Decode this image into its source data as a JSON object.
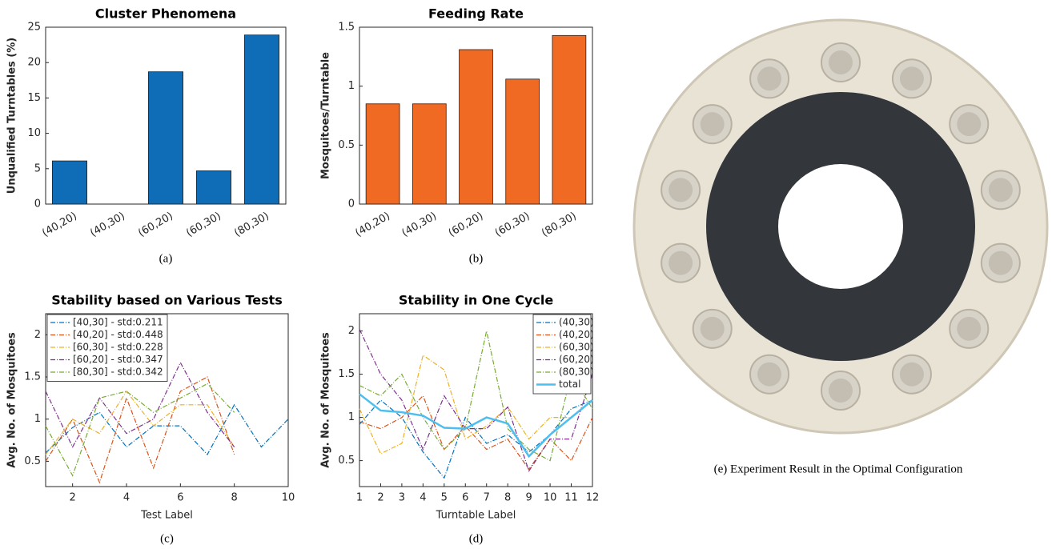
{
  "chart_data": [
    {
      "type": "bar",
      "title": "Cluster Phenomena",
      "ylabel": "Unqualified Turntables (%)",
      "caption": "(a)",
      "categories": [
        "(40,20)",
        "(40,30)",
        "(60,20)",
        "(60,30)",
        "(80,30)"
      ],
      "values": [
        6.1,
        0,
        18.7,
        4.7,
        23.9
      ],
      "color": "#0f6db8",
      "ylim": [
        0,
        25
      ],
      "yticks": [
        0,
        5,
        10,
        15,
        20,
        25
      ]
    },
    {
      "type": "bar",
      "title": "Feeding Rate",
      "ylabel": "Mosquitoes/Turntable",
      "caption": "(b)",
      "categories": [
        "(40,20)",
        "(40,30)",
        "(60,20)",
        "(60,30)",
        "(80,30)"
      ],
      "values": [
        0.85,
        0.85,
        1.31,
        1.06,
        1.43
      ],
      "color": "#f06a24",
      "ylim": [
        0,
        1.5
      ],
      "yticks": [
        0,
        0.5,
        1,
        1.5
      ]
    },
    {
      "type": "line",
      "title": "Stability based on Various Tests",
      "xlabel": "Test Label",
      "ylabel": "Avg. No. of Mosquitoes",
      "caption": "(c)",
      "x": [
        1,
        2,
        3,
        4,
        5,
        6,
        7,
        8,
        9,
        10
      ],
      "series": [
        {
          "name": "[40,30] - std:0.211",
          "color": "#0072bd",
          "values": [
            0.6,
            0.9,
            1.08,
            0.67,
            0.92,
            0.92,
            0.58,
            1.17,
            0.67,
            1.0
          ]
        },
        {
          "name": "[40,20] - std:0.448",
          "color": "#d95319",
          "values": [
            0.5,
            1.0,
            0.25,
            1.25,
            0.42,
            1.33,
            1.5,
            0.58,
            null,
            null
          ]
        },
        {
          "name": "[60,30] - std:0.228",
          "color": "#edb120",
          "values": [
            0.58,
            1.0,
            0.83,
            1.33,
            0.92,
            1.17,
            1.17,
            0.67,
            null,
            null
          ]
        },
        {
          "name": "[60,20] - std:0.347",
          "color": "#7e2f8e",
          "values": [
            1.33,
            0.67,
            1.25,
            0.83,
            1.0,
            1.67,
            1.08,
            0.67,
            null,
            null
          ]
        },
        {
          "name": "[80,30] - std:0.342",
          "color": "#77ac30",
          "values": [
            0.92,
            0.33,
            1.25,
            1.33,
            1.08,
            1.25,
            1.42,
            1.08,
            null,
            null
          ]
        }
      ],
      "xlim": [
        1,
        10
      ],
      "xticks": [
        2,
        4,
        6,
        8,
        10
      ],
      "ylim": [
        0.2,
        2.25
      ],
      "yticks": [
        0.5,
        1,
        1.5,
        2
      ],
      "legend": "upper-left"
    },
    {
      "type": "line",
      "title": "Stability in One Cycle",
      "xlabel": "Turntable Label",
      "ylabel": "Avg. No. of Mosquitoes",
      "caption": "(d)",
      "x": [
        1,
        2,
        3,
        4,
        5,
        6,
        7,
        8,
        9,
        10,
        11,
        12
      ],
      "series": [
        {
          "name": "(40,30)",
          "color": "#0072bd",
          "values": [
            0.92,
            1.2,
            1.0,
            0.6,
            0.3,
            1.0,
            0.7,
            0.8,
            0.6,
            0.8,
            1.1,
            1.2
          ]
        },
        {
          "name": "(40,20)",
          "color": "#d95319",
          "values": [
            0.95,
            0.87,
            1.0,
            1.25,
            0.63,
            0.9,
            0.63,
            0.75,
            0.4,
            0.75,
            0.5,
            1.0
          ]
        },
        {
          "name": "(60,30)",
          "color": "#edb120",
          "values": [
            1.1,
            0.58,
            0.7,
            1.72,
            1.55,
            0.75,
            0.9,
            1.12,
            0.75,
            1.0,
            1.0,
            1.2
          ]
        },
        {
          "name": "(60,20)",
          "color": "#7e2f8e",
          "values": [
            2.02,
            1.5,
            1.2,
            0.63,
            1.25,
            0.87,
            0.87,
            1.12,
            0.38,
            0.75,
            0.75,
            1.5
          ]
        },
        {
          "name": "(80,30)",
          "color": "#77ac30",
          "values": [
            1.37,
            1.25,
            1.5,
            1.0,
            0.63,
            0.87,
            2.0,
            0.87,
            0.63,
            0.5,
            1.5,
            1.1
          ]
        },
        {
          "name": "total",
          "color": "#4dbeee",
          "values": [
            1.27,
            1.08,
            1.06,
            1.02,
            0.88,
            0.87,
            1.0,
            0.93,
            0.55,
            0.8,
            1.0,
            1.2
          ]
        }
      ],
      "xlim": [
        1,
        12
      ],
      "xticks": [
        1,
        2,
        3,
        4,
        5,
        6,
        7,
        8,
        9,
        10,
        11,
        12
      ],
      "ylim": [
        0.2,
        2.2
      ],
      "yticks": [
        0.5,
        1,
        1.5,
        2
      ],
      "legend": "upper-right"
    }
  ],
  "photo": {
    "caption": "(e) Experiment Result in the Optimal Configuration"
  }
}
